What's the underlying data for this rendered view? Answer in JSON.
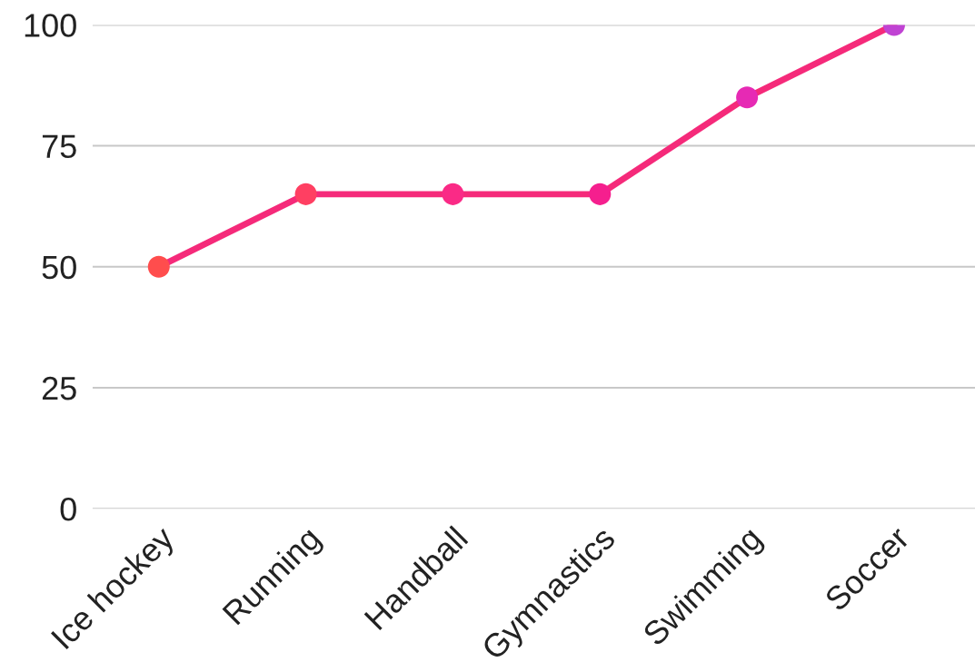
{
  "chart_data": {
    "type": "line",
    "categories": [
      "Ice hockey",
      "Running",
      "Handball",
      "Gymnastics",
      "Swimming",
      "Soccer"
    ],
    "values": [
      50,
      65,
      65,
      65,
      85,
      100
    ],
    "color": "#f52a7a",
    "colors": [
      "#ff4d4d",
      "#ff3f62",
      "#fa2a86",
      "#f51f8e",
      "#e62ab4",
      "#c043d3"
    ],
    "ylim": [
      0,
      100
    ],
    "yticks": [
      0,
      25,
      50,
      75,
      100
    ],
    "grid": "y",
    "marker": "circle",
    "line_style": "solid"
  }
}
